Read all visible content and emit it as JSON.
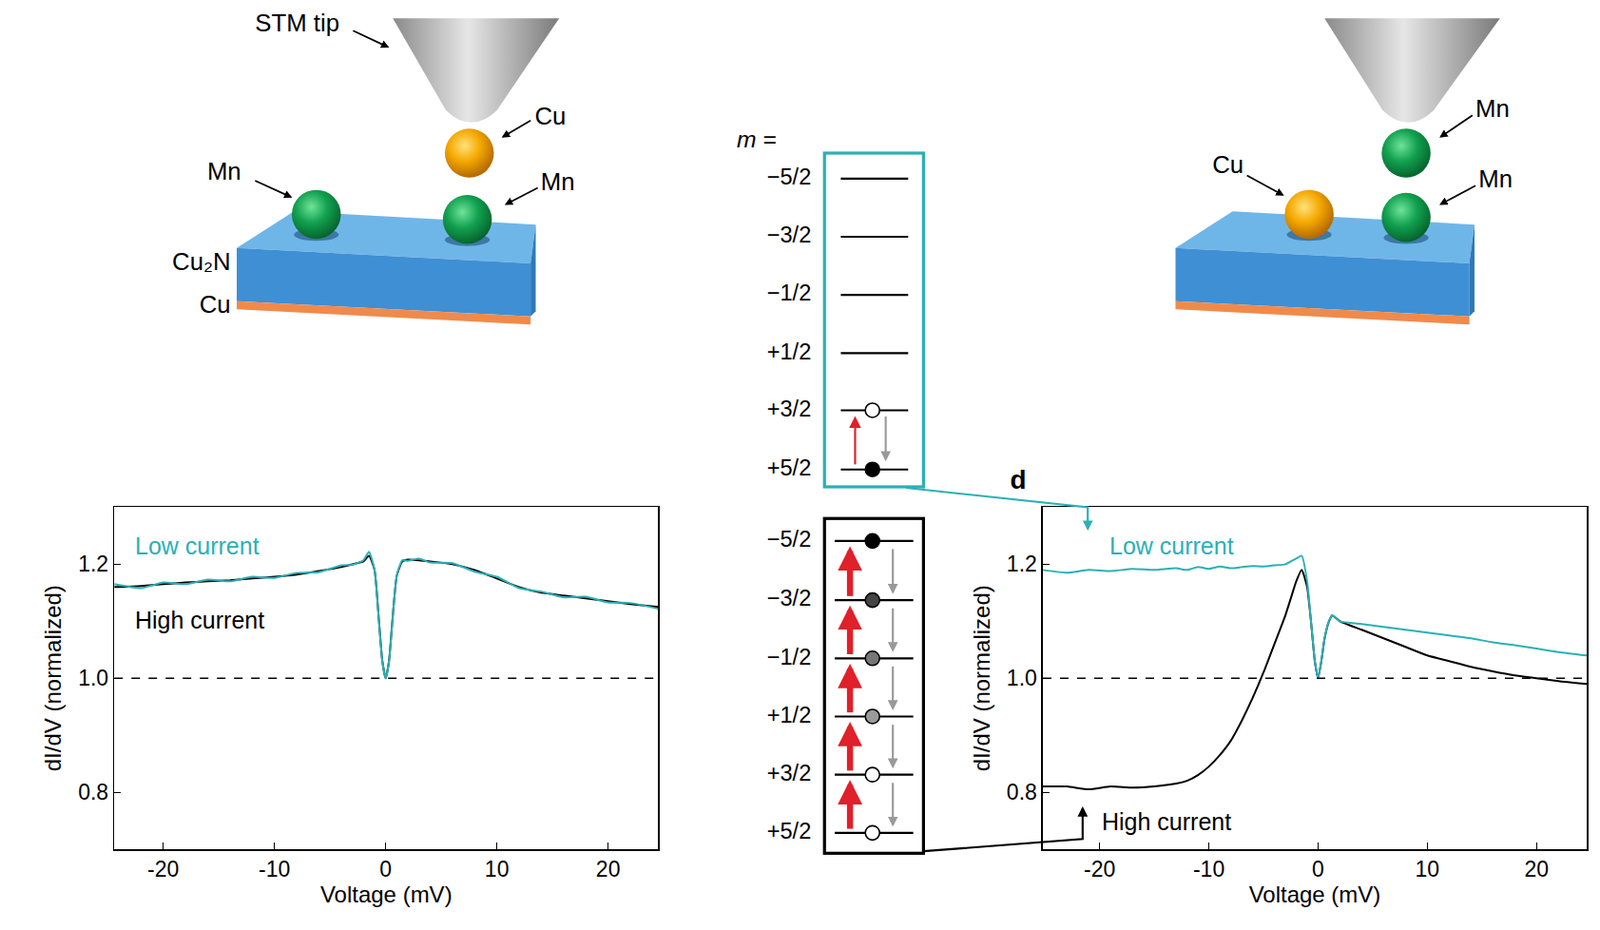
{
  "chart_data": [
    {
      "type": "line",
      "x_label": "Voltage (mV)",
      "y_label": "dI/dV (normalized)",
      "x": [
        -24.4,
        -22,
        -20,
        -18,
        -16,
        -14,
        -12,
        -10,
        -8,
        -6,
        -4,
        -3,
        -2,
        -1.5,
        -1,
        -0.6,
        -0.3,
        0,
        0.3,
        0.6,
        1,
        1.5,
        2,
        3,
        4,
        6,
        8,
        10,
        12,
        14,
        16,
        18,
        20,
        22,
        24.5
      ],
      "series": [
        {
          "name": "High current",
          "color": "#000000",
          "values": [
            1.16,
            1.162,
            1.165,
            1.168,
            1.17,
            1.172,
            1.175,
            1.178,
            1.182,
            1.188,
            1.195,
            1.2,
            1.205,
            1.215,
            1.19,
            1.1,
            1.03,
            1.0,
            1.03,
            1.1,
            1.18,
            1.205,
            1.208,
            1.207,
            1.205,
            1.2,
            1.19,
            1.175,
            1.16,
            1.15,
            1.145,
            1.14,
            1.135,
            1.13,
            1.125
          ]
        },
        {
          "name": "Low current",
          "color": "#2bb0b6",
          "values": [
            1.165,
            1.158,
            1.168,
            1.165,
            1.173,
            1.17,
            1.178,
            1.176,
            1.185,
            1.186,
            1.198,
            1.199,
            1.207,
            1.222,
            1.19,
            1.1,
            1.03,
            1.0,
            1.03,
            1.1,
            1.18,
            1.207,
            1.206,
            1.21,
            1.203,
            1.202,
            1.187,
            1.178,
            1.158,
            1.152,
            1.142,
            1.143,
            1.133,
            1.132,
            1.122
          ]
        }
      ],
      "xlim": [
        -24.4,
        24.5
      ],
      "ylim": [
        0.7,
        1.3
      ],
      "xticks": [
        -20,
        -10,
        0,
        10,
        20
      ],
      "yticks": [
        0.8,
        {
          "value": 1.0,
          "label": "1.0"
        },
        1.2
      ],
      "reference_line": {
        "value": 1.0,
        "line_style": "dashed"
      },
      "grid": false
    },
    {
      "type": "line",
      "panel_label": "d",
      "x_label": "Voltage (mV)",
      "y_label": "dI/dV (normalized)",
      "x": [
        -25.2,
        -23,
        -21,
        -19,
        -17,
        -15,
        -13,
        -12,
        -11,
        -10,
        -9,
        -8,
        -7,
        -6,
        -5,
        -4,
        -3,
        -2.5,
        -2,
        -1.5,
        -1,
        -0.6,
        -0.3,
        0,
        0.3,
        0.6,
        1,
        1.3,
        2,
        4,
        6,
        8,
        10,
        12,
        14,
        16,
        18,
        20,
        22,
        24.6
      ],
      "series": [
        {
          "name": "High current",
          "color": "#000000",
          "values": [
            0.81,
            0.81,
            0.805,
            0.81,
            0.808,
            0.81,
            0.815,
            0.82,
            0.83,
            0.845,
            0.865,
            0.89,
            0.925,
            0.965,
            1.01,
            1.06,
            1.11,
            1.14,
            1.17,
            1.19,
            1.16,
            1.09,
            1.03,
            1.0,
            1.03,
            1.07,
            1.1,
            1.11,
            1.1,
            1.085,
            1.07,
            1.055,
            1.04,
            1.03,
            1.02,
            1.012,
            1.005,
            1.0,
            0.995,
            0.99
          ]
        },
        {
          "name": "Low current",
          "color": "#2bb0b6",
          "values": [
            1.19,
            1.185,
            1.19,
            1.188,
            1.192,
            1.19,
            1.193,
            1.19,
            1.195,
            1.192,
            1.196,
            1.193,
            1.195,
            1.197,
            1.196,
            1.198,
            1.2,
            1.205,
            1.21,
            1.215,
            1.17,
            1.09,
            1.03,
            1.0,
            1.03,
            1.07,
            1.1,
            1.11,
            1.1,
            1.095,
            1.09,
            1.085,
            1.08,
            1.075,
            1.07,
            1.063,
            1.058,
            1.052,
            1.046,
            1.04
          ]
        }
      ],
      "xlim": [
        -25.2,
        24.6
      ],
      "ylim": [
        0.7,
        1.3
      ],
      "xticks": [
        -20,
        -10,
        0,
        10,
        20
      ],
      "yticks": [
        0.8,
        {
          "value": 1.0,
          "label": "1.0"
        },
        1.2
      ],
      "reference_line": {
        "value": 1.0,
        "line_style": "dashed"
      },
      "grid": false
    }
  ],
  "diagram": {
    "left_setup": {
      "tip": "STM tip",
      "tip_atom": "Cu",
      "surface_atoms": [
        "Mn",
        "Mn"
      ],
      "substrate": "Cu₂N",
      "base": "Cu"
    },
    "right_setup": {
      "tip_atom": "Mn",
      "surface_atoms": [
        "Cu",
        "Mn"
      ]
    },
    "levels": {
      "header": "m =",
      "low_current": [
        "−5/2",
        "−3/2",
        "−1/2",
        "+1/2",
        "+3/2",
        "+5/2"
      ],
      "high_current": [
        "−5/2",
        "−3/2",
        "−1/2",
        "+1/2",
        "+3/2",
        "+5/2"
      ]
    }
  }
}
